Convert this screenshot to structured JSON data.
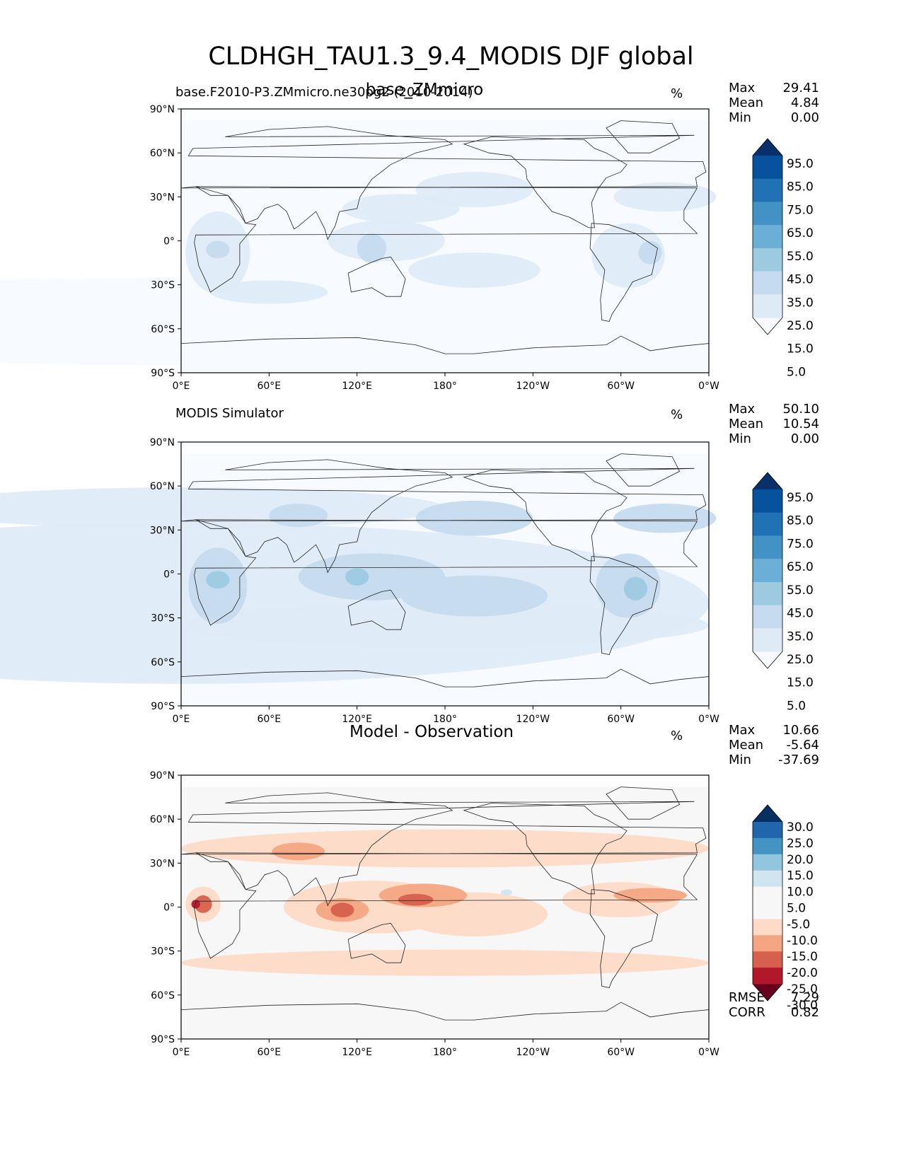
{
  "title": "CLDHGH_TAU1.3_9.4_MODIS DJF global",
  "colors": {
    "blues": [
      "#f7fbff",
      "#deebf7",
      "#c6dbef",
      "#9ecae1",
      "#6baed6",
      "#4292c6",
      "#2171b5",
      "#08519c",
      "#08306b"
    ],
    "diff": [
      "#67001f",
      "#b2182b",
      "#d6604d",
      "#f4a582",
      "#fddbc7",
      "#f7f7f7",
      "#d1e5f0",
      "#92c5de",
      "#4393c3",
      "#2166ac",
      "#053061"
    ]
  },
  "panels": [
    {
      "id": "test",
      "left_title": "base.F2010-P3.ZMmicro.ne30pg2 (2010-2014)",
      "center_title": "base_ZMmicro",
      "units": "%",
      "stats": [
        {
          "label": "Max",
          "value": "29.41"
        },
        {
          "label": "Mean",
          "value": "4.84"
        },
        {
          "label": "Min",
          "value": "0.00"
        }
      ],
      "colorbar": {
        "ticks": [
          "95.0",
          "85.0",
          "75.0",
          "65.0",
          "55.0",
          "45.0",
          "35.0",
          "25.0",
          "15.0",
          "5.0"
        ],
        "palette": "blues"
      }
    },
    {
      "id": "ref",
      "left_title": "MODIS Simulator",
      "center_title": "",
      "units": "%",
      "stats": [
        {
          "label": "Max",
          "value": "50.10"
        },
        {
          "label": "Mean",
          "value": "10.54"
        },
        {
          "label": "Min",
          "value": "0.00"
        }
      ],
      "colorbar": {
        "ticks": [
          "95.0",
          "85.0",
          "75.0",
          "65.0",
          "55.0",
          "45.0",
          "35.0",
          "25.0",
          "15.0",
          "5.0"
        ],
        "palette": "blues"
      }
    },
    {
      "id": "diff",
      "left_title": "",
      "center_title": "Model - Observation",
      "units": "%",
      "stats": [
        {
          "label": "Max",
          "value": "10.66"
        },
        {
          "label": "Mean",
          "value": "-5.64"
        },
        {
          "label": "Min",
          "value": "-37.69"
        }
      ],
      "colorbar": {
        "ticks": [
          "30.0",
          "25.0",
          "20.0",
          "15.0",
          "10.0",
          "5.0",
          "-5.0",
          "-10.0",
          "-15.0",
          "-20.0",
          "-25.0",
          "-30.0"
        ],
        "palette": "diff"
      },
      "extra_stats": [
        {
          "label": "RMSE",
          "value": "7.29"
        },
        {
          "label": "CORR",
          "value": "0.82"
        }
      ]
    }
  ],
  "axes": {
    "lat_ticks": [
      "90°N",
      "60°N",
      "30°N",
      "0°",
      "30°S",
      "60°S",
      "90°S"
    ],
    "lon_ticks": [
      "0°E",
      "60°E",
      "120°E",
      "180°",
      "120°W",
      "60°W",
      "0°W"
    ]
  },
  "chart_data": [
    {
      "type": "heatmap",
      "title": "base_ZMmicro",
      "subtitle": "base.F2010-P3.ZMmicro.ne30pg2 (2010-2014)",
      "units": "%",
      "xlabel": "",
      "ylabel": "",
      "x_ticks": [
        "0°E",
        "60°E",
        "120°E",
        "180°",
        "120°W",
        "60°W",
        "0°W"
      ],
      "y_ticks": [
        "90°N",
        "60°N",
        "30°N",
        "0°",
        "30°S",
        "60°S",
        "90°S"
      ],
      "levels": [
        5,
        15,
        25,
        35,
        45,
        55,
        65,
        75,
        85,
        95
      ],
      "max": 29.41,
      "mean": 4.84,
      "min": 0.0
    },
    {
      "type": "heatmap",
      "title": "MODIS Simulator",
      "units": "%",
      "xlabel": "",
      "ylabel": "",
      "x_ticks": [
        "0°E",
        "60°E",
        "120°E",
        "180°",
        "120°W",
        "60°W",
        "0°W"
      ],
      "y_ticks": [
        "90°N",
        "60°N",
        "30°N",
        "0°",
        "30°S",
        "60°S",
        "90°S"
      ],
      "levels": [
        5,
        15,
        25,
        35,
        45,
        55,
        65,
        75,
        85,
        95
      ],
      "max": 50.1,
      "mean": 10.54,
      "min": 0.0
    },
    {
      "type": "heatmap",
      "title": "Model - Observation",
      "units": "%",
      "xlabel": "",
      "ylabel": "",
      "x_ticks": [
        "0°E",
        "60°E",
        "120°E",
        "180°",
        "120°W",
        "60°W",
        "0°W"
      ],
      "y_ticks": [
        "90°N",
        "60°N",
        "30°N",
        "0°",
        "30°S",
        "60°S",
        "90°S"
      ],
      "levels": [
        -30,
        -25,
        -20,
        -15,
        -10,
        -5,
        5,
        10,
        15,
        20,
        25,
        30
      ],
      "max": 10.66,
      "mean": -5.64,
      "min": -37.69,
      "rmse": 7.29,
      "corr": 0.82
    }
  ]
}
